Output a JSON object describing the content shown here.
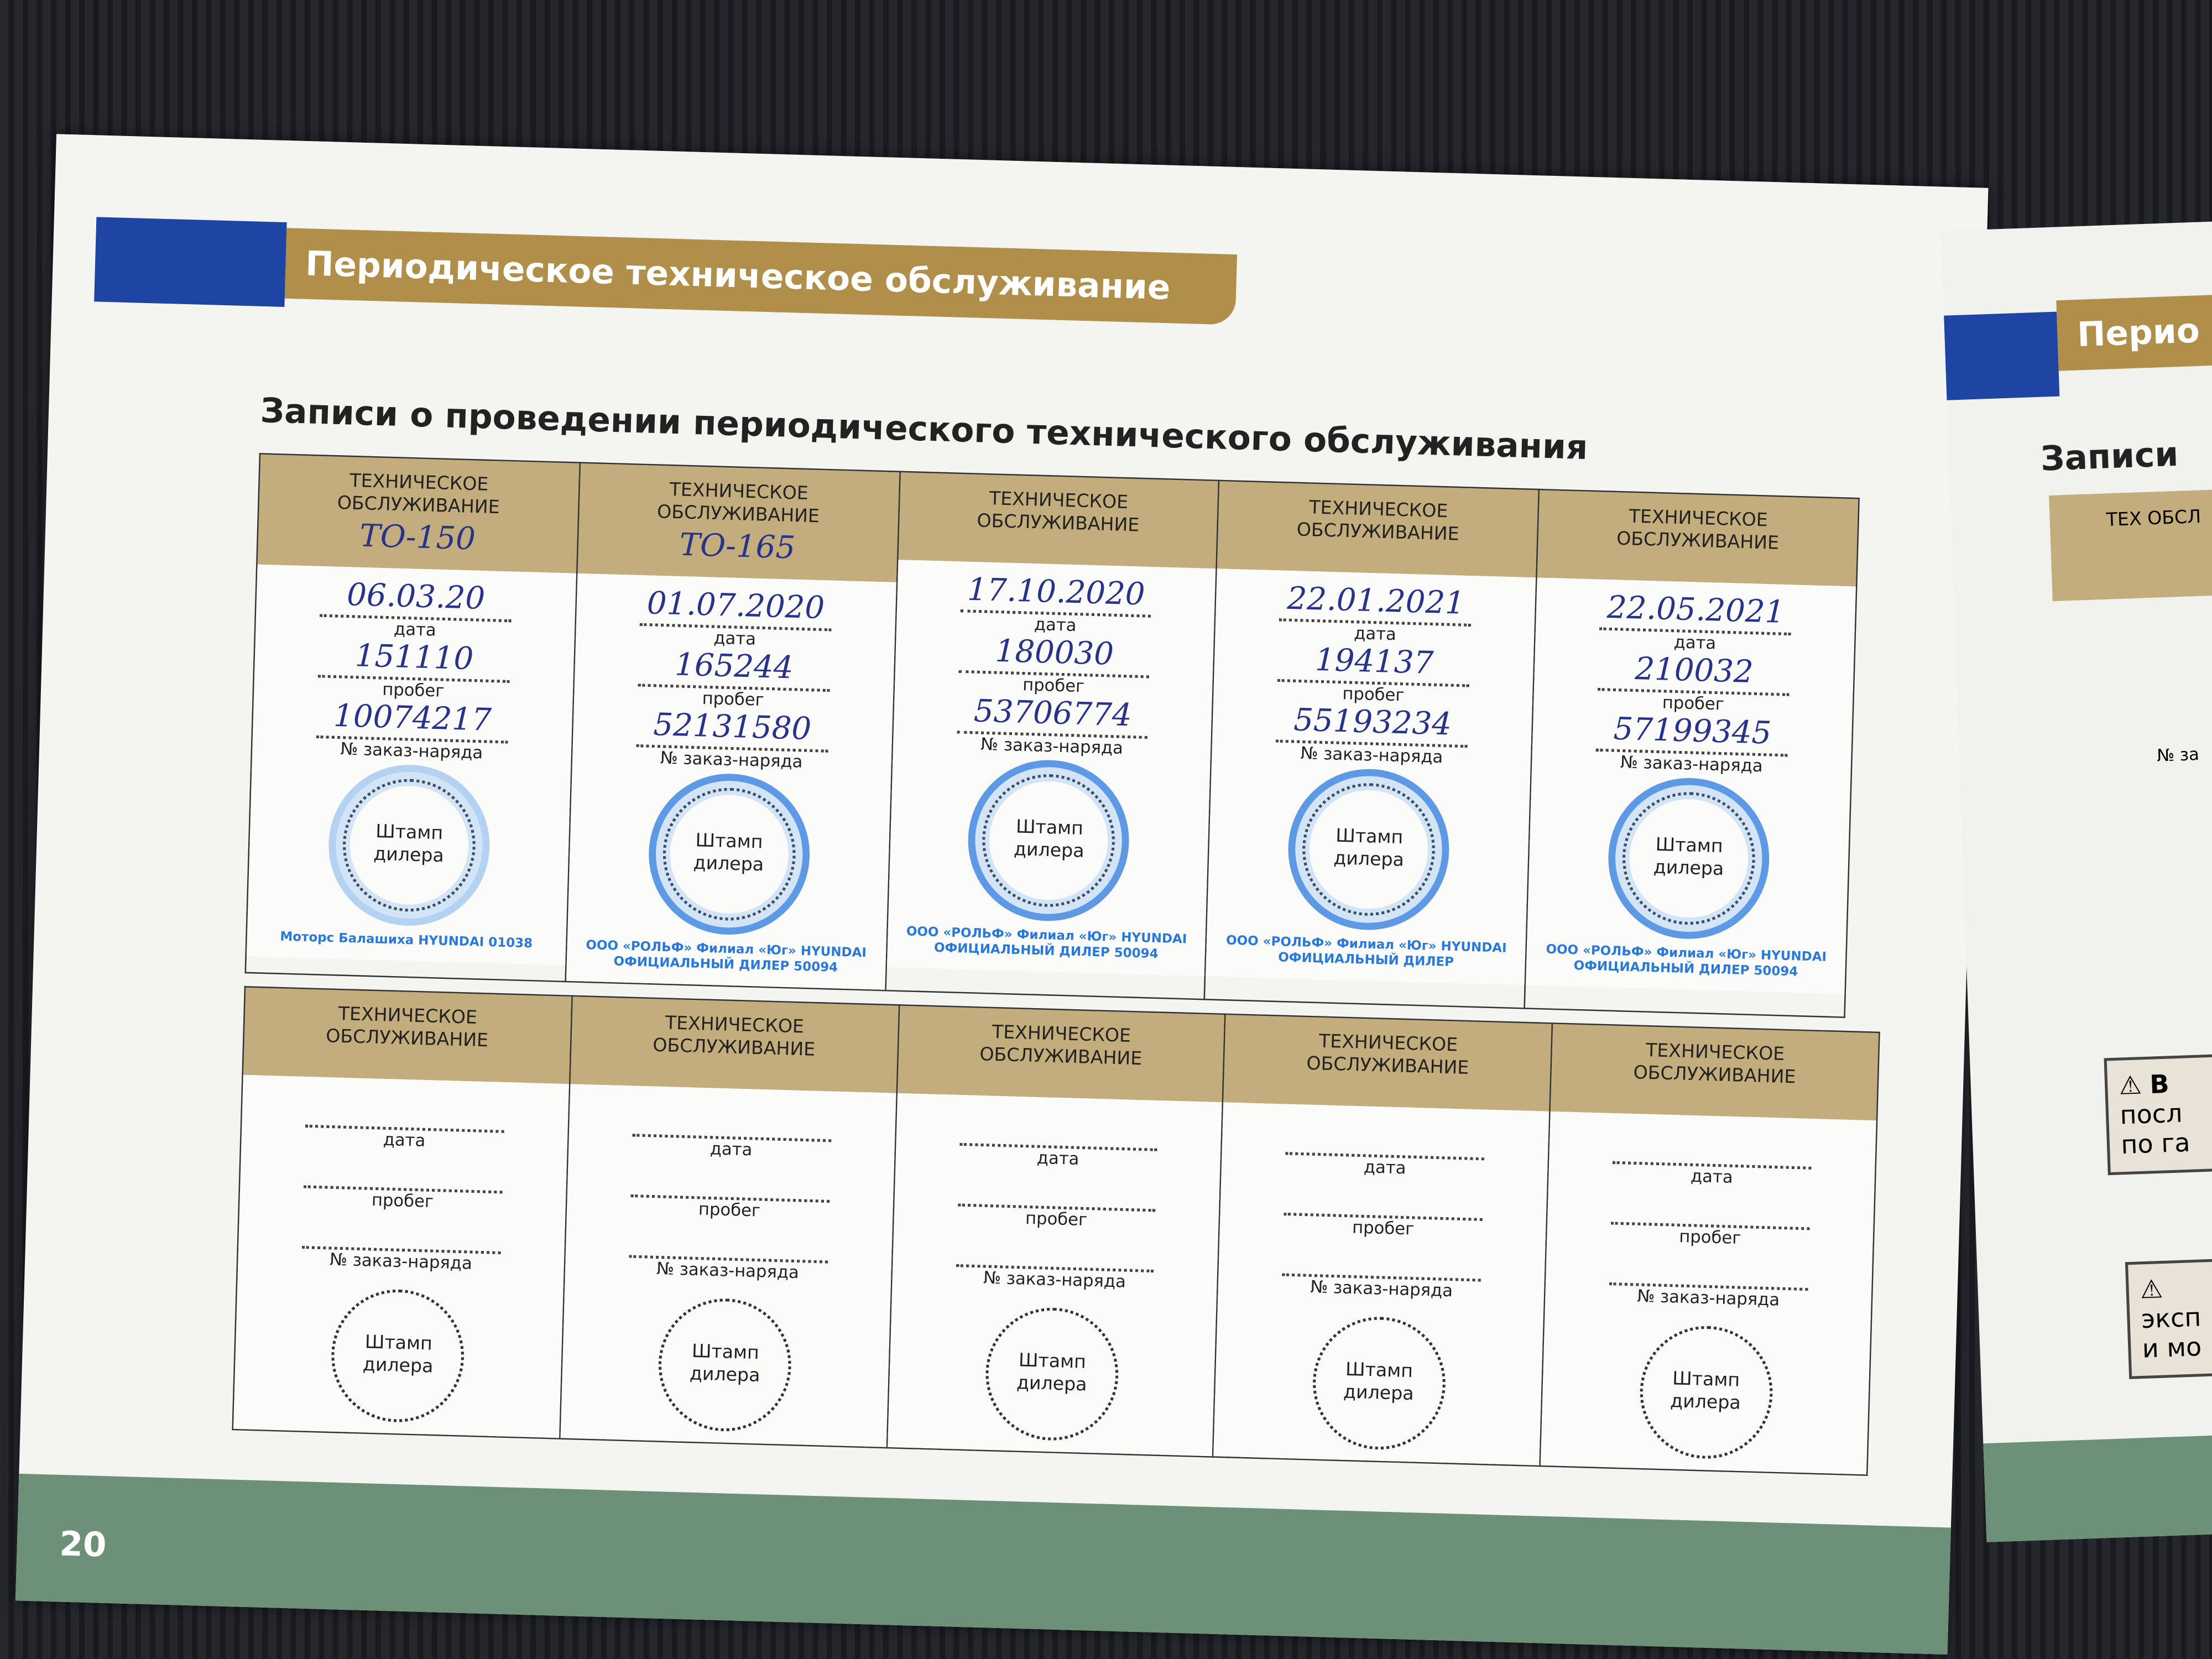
{
  "header": {
    "section_title": "Периодическое техническое обслуживание",
    "subtitle": "Записи о проведении периодического технического обслуживания"
  },
  "labels": {
    "service": "ТЕХНИЧЕСКОЕ ОБСЛУЖИВАНИЕ",
    "date": "дата",
    "mileage": "пробег",
    "order": "№ заказ-наряда",
    "stamp": "Штамп дилера"
  },
  "records": [
    {
      "service": "ТО-150",
      "date": "06.03.20",
      "mileage": "151110",
      "order": "10074217",
      "stamp": "Моторс Балашиха HYUNDAI 01038"
    },
    {
      "service": "ТО-165",
      "date": "01.07.2020",
      "mileage": "165244",
      "order": "52131580",
      "stamp": "ООО «РОЛЬФ» Филиал «Юг» HYUNDAI ОФИЦИАЛЬНЫЙ ДИЛЕР 50094"
    },
    {
      "service": "",
      "date": "17.10.2020",
      "mileage": "180030",
      "order": "53706774",
      "stamp": "ООО «РОЛЬФ» Филиал «Юг» HYUNDAI ОФИЦИАЛЬНЫЙ ДИЛЕР 50094"
    },
    {
      "service": "",
      "date": "22.01.2021",
      "mileage": "194137",
      "order": "55193234",
      "stamp": "ООО «РОЛЬФ» Филиал «Юг» HYUNDAI ОФИЦИАЛЬНЫЙ ДИЛЕР"
    },
    {
      "service": "",
      "date": "22.05.2021",
      "mileage": "210032",
      "order": "57199345",
      "stamp": "ООО «РОЛЬФ» Филиал «Юг» HYUNDAI ОФИЦИАЛЬНЫЙ ДИЛЕР 50094"
    }
  ],
  "page_number": "20",
  "right_page": {
    "section_title": "Перио",
    "subtitle": "Записи",
    "header": "ТЕХ ОБСЛ",
    "order": "№ за",
    "warning1_title": "В",
    "warning1_lines": [
      "посл",
      "по га"
    ],
    "warning2_lines": [
      "эксп",
      "и мо"
    ]
  },
  "colors": {
    "blue": "#1e44a4",
    "gold": "#b08f4a",
    "header_cell": "#c4ad7c",
    "footer": "#6d9178",
    "stamp": "#2878dc",
    "ink": "#27328a"
  }
}
